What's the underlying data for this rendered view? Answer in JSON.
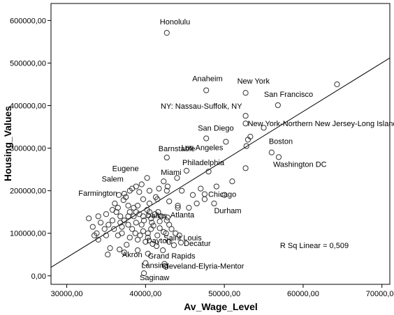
{
  "chart_data": {
    "type": "scatter",
    "xlabel": "Av_Wage_Level",
    "ylabel": "Housing_Values",
    "xlim": [
      28000,
      71000
    ],
    "ylim": [
      -20000,
      640000
    ],
    "x_ticks": [
      30000,
      40000,
      50000,
      60000,
      70000
    ],
    "y_ticks": [
      0,
      100000,
      200000,
      300000,
      400000,
      500000,
      600000
    ],
    "x_tick_labels": [
      "30000,00",
      "40000,00",
      "50000,00",
      "60000,00",
      "70000,00"
    ],
    "y_tick_labels": [
      "0,00",
      "100000,00",
      "200000,00",
      "300000,00",
      "400000,00",
      "500000,00",
      "600000,00"
    ],
    "grid": false,
    "fit_line": {
      "x": [
        28000,
        71000
      ],
      "y": [
        20000,
        512000
      ]
    },
    "r_squared_label": "R Sq Linear = 0,509",
    "labeled_points": [
      {
        "label": "Honolulu",
        "x": 42700,
        "y": 571000
      },
      {
        "label": "Anaheim",
        "x": 47700,
        "y": 436000
      },
      {
        "label": "New York",
        "x": 52700,
        "y": 430000
      },
      {
        "label": "San Francisco",
        "x": 56800,
        "y": 401000
      },
      {
        "label": "NY: Nassau-Suffolk, NY",
        "x": 52700,
        "y": 376000
      },
      {
        "label": "New York-Northern New Jersey-Long Island",
        "x": 52700,
        "y": 358000
      },
      {
        "label": "San Diego",
        "x": 47700,
        "y": 323000
      },
      {
        "label": "Los Angeles",
        "x": 50200,
        "y": 315000
      },
      {
        "label": "Barnstable",
        "x": 42700,
        "y": 278000
      },
      {
        "label": "Boston",
        "x": 56000,
        "y": 290000
      },
      {
        "label": "Washington DC",
        "x": 56900,
        "y": 279000
      },
      {
        "label": "Philadelphia",
        "x": 45200,
        "y": 247000
      },
      {
        "label": "Eugene",
        "x": 40200,
        "y": 230000
      },
      {
        "label": "Miami",
        "x": 42300,
        "y": 222000
      },
      {
        "label": "Salem",
        "x": 38800,
        "y": 210000
      },
      {
        "label": "Farmington",
        "x": 37300,
        "y": 193000
      },
      {
        "label": "Chicago",
        "x": 47500,
        "y": 192000
      },
      {
        "label": "Durham",
        "x": 48700,
        "y": 170000
      },
      {
        "label": "Dallas",
        "x": 40200,
        "y": 155000
      },
      {
        "label": "Atlanta",
        "x": 42800,
        "y": 137000
      },
      {
        "label": "Saint Louis",
        "x": 42300,
        "y": 103000
      },
      {
        "label": "Dayton",
        "x": 40300,
        "y": 90000
      },
      {
        "label": "Decatur",
        "x": 44500,
        "y": 78000
      },
      {
        "label": "Akron",
        "x": 37300,
        "y": 55000
      },
      {
        "label": "Grand Rapids",
        "x": 40300,
        "y": 52000
      },
      {
        "label": "Lansing",
        "x": 40000,
        "y": 30000
      },
      {
        "label": "Cleveland-Elyria-Mentor",
        "x": 42400,
        "y": 28000
      },
      {
        "label": "Saginaw",
        "x": 39800,
        "y": 6000
      }
    ],
    "other_points": [
      [
        64300,
        450000
      ],
      [
        53000,
        320000
      ],
      [
        53300,
        327000
      ],
      [
        52800,
        305000
      ],
      [
        55000,
        348000
      ],
      [
        52700,
        253000
      ],
      [
        51000,
        222000
      ],
      [
        48000,
        245000
      ],
      [
        46000,
        190000
      ],
      [
        44600,
        200000
      ],
      [
        44100,
        165000
      ],
      [
        43000,
        175000
      ],
      [
        42700,
        200000
      ],
      [
        41700,
        205000
      ],
      [
        40500,
        200000
      ],
      [
        39700,
        180000
      ],
      [
        39500,
        215000
      ],
      [
        39200,
        197000
      ],
      [
        38300,
        205000
      ],
      [
        38000,
        200000
      ],
      [
        37500,
        185000
      ],
      [
        37200,
        178000
      ],
      [
        36600,
        190000
      ],
      [
        36100,
        170000
      ],
      [
        36500,
        160000
      ],
      [
        37800,
        165000
      ],
      [
        38500,
        160000
      ],
      [
        38800,
        150000
      ],
      [
        39200,
        145000
      ],
      [
        39700,
        140000
      ],
      [
        40700,
        135000
      ],
      [
        41200,
        145000
      ],
      [
        41600,
        150000
      ],
      [
        42000,
        140000
      ],
      [
        42700,
        130000
      ],
      [
        43000,
        120000
      ],
      [
        43300,
        110000
      ],
      [
        43800,
        100000
      ],
      [
        44300,
        95000
      ],
      [
        41000,
        118000
      ],
      [
        40700,
        110000
      ],
      [
        40300,
        100000
      ],
      [
        39700,
        105000
      ],
      [
        39300,
        95000
      ],
      [
        38700,
        100000
      ],
      [
        38300,
        110000
      ],
      [
        37800,
        120000
      ],
      [
        37300,
        130000
      ],
      [
        36800,
        140000
      ],
      [
        36300,
        150000
      ],
      [
        35800,
        130000
      ],
      [
        35300,
        120000
      ],
      [
        34800,
        110000
      ],
      [
        34300,
        125000
      ],
      [
        33800,
        100000
      ],
      [
        33300,
        115000
      ],
      [
        32800,
        135000
      ],
      [
        34000,
        140000
      ],
      [
        35000,
        145000
      ],
      [
        35800,
        155000
      ],
      [
        36800,
        125000
      ],
      [
        37800,
        140000
      ],
      [
        38800,
        125000
      ],
      [
        39800,
        130000
      ],
      [
        40800,
        125000
      ],
      [
        41800,
        128000
      ],
      [
        42600,
        100000
      ],
      [
        41500,
        95000
      ],
      [
        40000,
        80000
      ],
      [
        39000,
        85000
      ],
      [
        38000,
        90000
      ],
      [
        37000,
        100000
      ],
      [
        36000,
        110000
      ],
      [
        35000,
        95000
      ],
      [
        34000,
        85000
      ],
      [
        33500,
        95000
      ],
      [
        35500,
        65000
      ],
      [
        35200,
        50000
      ],
      [
        36700,
        62000
      ],
      [
        39000,
        60000
      ],
      [
        41400,
        70000
      ],
      [
        42200,
        60000
      ],
      [
        43600,
        72000
      ],
      [
        43000,
        80000
      ],
      [
        40500,
        170000
      ],
      [
        41500,
        180000
      ],
      [
        45500,
        160000
      ],
      [
        46500,
        170000
      ],
      [
        47500,
        180000
      ],
      [
        47000,
        205000
      ],
      [
        49000,
        210000
      ],
      [
        50000,
        190000
      ],
      [
        44000,
        230000
      ],
      [
        42800,
        210000
      ],
      [
        41300,
        185000
      ],
      [
        39000,
        165000
      ],
      [
        38000,
        150000
      ],
      [
        37000,
        115000
      ],
      [
        36500,
        95000
      ],
      [
        38500,
        140000
      ],
      [
        39500,
        120000
      ],
      [
        40500,
        150000
      ],
      [
        41800,
        112000
      ],
      [
        44100,
        160000
      ],
      [
        37600,
        73000
      ],
      [
        40900,
        75000
      ]
    ]
  }
}
